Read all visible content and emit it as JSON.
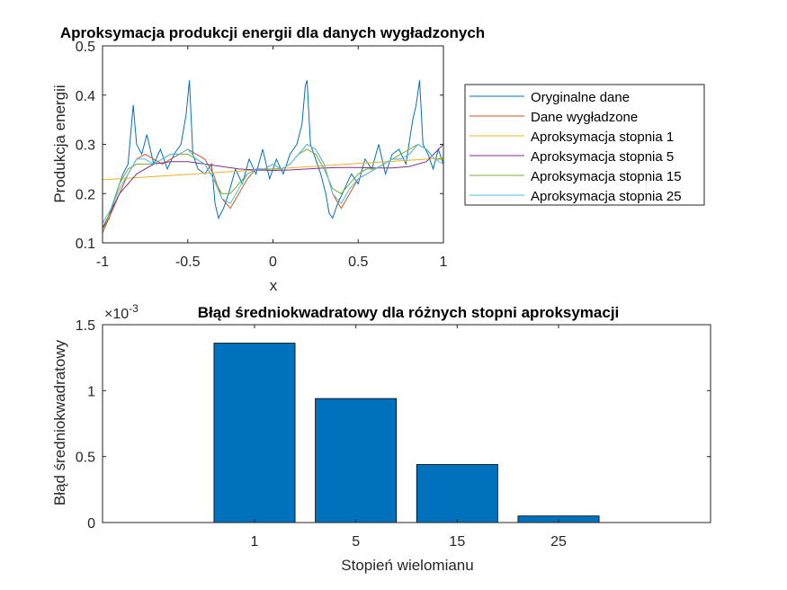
{
  "chart_data": [
    {
      "type": "line",
      "title": "Aproksymacja produkcji energii dla danych wygładzonych",
      "xlabel": "x",
      "ylabel": "Produkcja energii",
      "xlim": [
        -1,
        1
      ],
      "ylim": [
        0.1,
        0.5
      ],
      "xticks": [
        -1,
        -0.5,
        0,
        0.5,
        1
      ],
      "xtick_labels": [
        "-1",
        "-0.5",
        "0",
        "0.5",
        "1"
      ],
      "yticks": [
        0.1,
        0.2,
        0.3,
        0.4,
        0.5
      ],
      "ytick_labels": [
        "0.1",
        "0.2",
        "0.3",
        "0.4",
        "0.5"
      ],
      "grid": false,
      "legend_position": "outside-right",
      "series": [
        {
          "name": "Oryginalne dane",
          "color": "#0072bd",
          "description": "noisy periodic signal with spikes near x=-0.82, -0.49, 0.2, 0.86",
          "x": [
            -1,
            -0.96,
            -0.92,
            -0.88,
            -0.85,
            -0.83,
            -0.82,
            -0.8,
            -0.77,
            -0.74,
            -0.7,
            -0.66,
            -0.62,
            -0.58,
            -0.54,
            -0.51,
            -0.49,
            -0.47,
            -0.44,
            -0.4,
            -0.36,
            -0.34,
            -0.32,
            -0.29,
            -0.26,
            -0.22,
            -0.18,
            -0.14,
            -0.1,
            -0.06,
            -0.02,
            0.02,
            0.06,
            0.1,
            0.14,
            0.17,
            0.19,
            0.2,
            0.22,
            0.25,
            0.28,
            0.31,
            0.33,
            0.35,
            0.38,
            0.42,
            0.46,
            0.5,
            0.54,
            0.58,
            0.62,
            0.66,
            0.7,
            0.74,
            0.78,
            0.82,
            0.84,
            0.86,
            0.88,
            0.91,
            0.94,
            0.97,
            1
          ],
          "y": [
            0.13,
            0.15,
            0.2,
            0.24,
            0.26,
            0.34,
            0.38,
            0.3,
            0.28,
            0.32,
            0.26,
            0.29,
            0.25,
            0.28,
            0.3,
            0.36,
            0.43,
            0.28,
            0.25,
            0.24,
            0.26,
            0.18,
            0.15,
            0.17,
            0.2,
            0.25,
            0.22,
            0.27,
            0.24,
            0.29,
            0.23,
            0.27,
            0.24,
            0.28,
            0.3,
            0.34,
            0.42,
            0.43,
            0.3,
            0.27,
            0.24,
            0.2,
            0.16,
            0.15,
            0.18,
            0.21,
            0.24,
            0.22,
            0.27,
            0.25,
            0.3,
            0.24,
            0.28,
            0.29,
            0.26,
            0.35,
            0.38,
            0.43,
            0.3,
            0.28,
            0.25,
            0.29,
            0.26
          ]
        },
        {
          "name": "Dane wygładzone",
          "color": "#d95319",
          "x": [
            -1,
            -0.95,
            -0.9,
            -0.85,
            -0.8,
            -0.75,
            -0.7,
            -0.65,
            -0.6,
            -0.55,
            -0.5,
            -0.45,
            -0.4,
            -0.35,
            -0.3,
            -0.25,
            -0.2,
            -0.15,
            -0.1,
            -0.05,
            0,
            0.05,
            0.1,
            0.15,
            0.2,
            0.25,
            0.3,
            0.35,
            0.4,
            0.45,
            0.5,
            0.55,
            0.6,
            0.65,
            0.7,
            0.75,
            0.8,
            0.85,
            0.9,
            0.95,
            1
          ],
          "y": [
            0.12,
            0.16,
            0.2,
            0.24,
            0.27,
            0.28,
            0.27,
            0.26,
            0.27,
            0.28,
            0.29,
            0.28,
            0.27,
            0.24,
            0.19,
            0.17,
            0.2,
            0.23,
            0.25,
            0.25,
            0.26,
            0.25,
            0.26,
            0.28,
            0.3,
            0.29,
            0.26,
            0.2,
            0.17,
            0.2,
            0.23,
            0.24,
            0.25,
            0.26,
            0.27,
            0.27,
            0.28,
            0.3,
            0.29,
            0.27,
            0.27
          ]
        },
        {
          "name": "Aproksymacja stopnia 1",
          "color": "#edb120",
          "x": [
            -1,
            1
          ],
          "y": [
            0.228,
            0.272
          ]
        },
        {
          "name": "Aproksymacja stopnia 5",
          "color": "#7e2f8e",
          "x": [
            -1,
            -0.9,
            -0.8,
            -0.7,
            -0.6,
            -0.5,
            -0.4,
            -0.3,
            -0.2,
            -0.1,
            0,
            0.1,
            0.2,
            0.3,
            0.4,
            0.5,
            0.6,
            0.7,
            0.8,
            0.9,
            1
          ],
          "y": [
            0.13,
            0.2,
            0.24,
            0.26,
            0.265,
            0.265,
            0.26,
            0.255,
            0.25,
            0.248,
            0.247,
            0.248,
            0.25,
            0.252,
            0.253,
            0.253,
            0.252,
            0.252,
            0.255,
            0.265,
            0.3
          ]
        },
        {
          "name": "Aproksymacja stopnia 15",
          "color": "#77ac30",
          "x": [
            -1,
            -0.95,
            -0.9,
            -0.85,
            -0.8,
            -0.75,
            -0.7,
            -0.65,
            -0.6,
            -0.55,
            -0.5,
            -0.45,
            -0.4,
            -0.35,
            -0.3,
            -0.25,
            -0.2,
            -0.15,
            -0.1,
            -0.05,
            0,
            0.05,
            0.1,
            0.15,
            0.2,
            0.25,
            0.3,
            0.35,
            0.4,
            0.45,
            0.5,
            0.55,
            0.6,
            0.65,
            0.7,
            0.75,
            0.8,
            0.85,
            0.9,
            0.95,
            1
          ],
          "y": [
            0.12,
            0.17,
            0.22,
            0.25,
            0.26,
            0.26,
            0.26,
            0.27,
            0.28,
            0.28,
            0.28,
            0.27,
            0.26,
            0.23,
            0.2,
            0.2,
            0.22,
            0.24,
            0.25,
            0.25,
            0.25,
            0.25,
            0.26,
            0.28,
            0.29,
            0.28,
            0.25,
            0.21,
            0.2,
            0.22,
            0.24,
            0.25,
            0.25,
            0.26,
            0.27,
            0.28,
            0.29,
            0.3,
            0.29,
            0.27,
            0.27
          ]
        },
        {
          "name": "Aproksymacja stopnia 25",
          "color": "#4dbeee",
          "x": [
            -1,
            -0.95,
            -0.9,
            -0.85,
            -0.8,
            -0.75,
            -0.7,
            -0.65,
            -0.6,
            -0.55,
            -0.5,
            -0.45,
            -0.4,
            -0.35,
            -0.3,
            -0.25,
            -0.2,
            -0.15,
            -0.1,
            -0.05,
            0,
            0.05,
            0.1,
            0.15,
            0.2,
            0.25,
            0.3,
            0.35,
            0.4,
            0.45,
            0.5,
            0.55,
            0.6,
            0.65,
            0.7,
            0.75,
            0.8,
            0.85,
            0.9,
            0.95,
            1
          ],
          "y": [
            0.14,
            0.17,
            0.21,
            0.24,
            0.27,
            0.27,
            0.26,
            0.27,
            0.28,
            0.28,
            0.29,
            0.27,
            0.26,
            0.23,
            0.19,
            0.18,
            0.21,
            0.24,
            0.25,
            0.25,
            0.26,
            0.25,
            0.26,
            0.28,
            0.3,
            0.29,
            0.26,
            0.2,
            0.18,
            0.21,
            0.23,
            0.24,
            0.25,
            0.26,
            0.27,
            0.27,
            0.28,
            0.3,
            0.29,
            0.27,
            0.26
          ]
        }
      ]
    },
    {
      "type": "bar",
      "title": "Błąd średniokwadratowy dla różnych stopni aproksymacji",
      "exponent_label": "×10",
      "exponent_value": "-3",
      "xlabel": "Stopień wielomianu",
      "ylabel": "Błąd średniokwadratowy",
      "categories": [
        "1",
        "5",
        "15",
        "25"
      ],
      "values": [
        1.36,
        0.94,
        0.44,
        0.05
      ],
      "value_scale": "1e-3",
      "ylim": [
        0,
        1.5
      ],
      "yticks": [
        0,
        0.5,
        1,
        1.5
      ],
      "ytick_labels": [
        "0",
        "0.5",
        "1",
        "1.5"
      ],
      "bar_color": "#0072bd",
      "grid": false
    }
  ]
}
